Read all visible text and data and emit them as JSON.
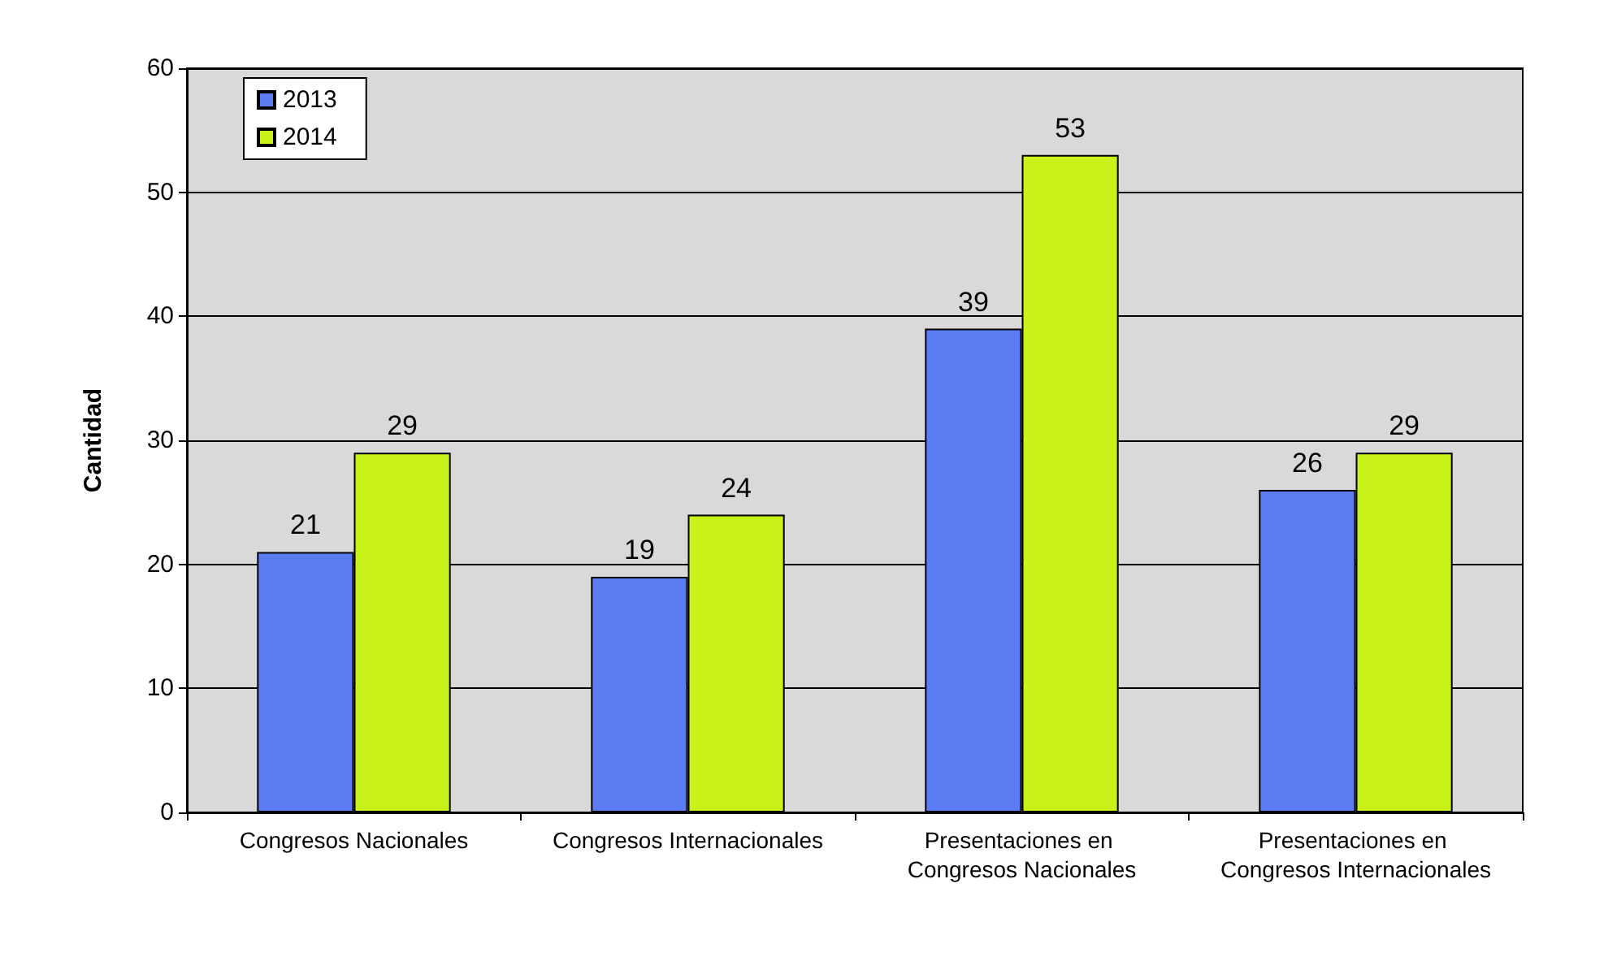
{
  "chart_data": {
    "type": "bar",
    "ylabel": "Cantidad",
    "categories": [
      "Congresos Nacionales",
      "Congresos Internacionales",
      "Presentaciones en Congresos Nacionales",
      "Presentaciones en Congresos Internacionales"
    ],
    "series": [
      {
        "name": "2013",
        "color": "#5b7cf2",
        "values": [
          21,
          19,
          39,
          26
        ]
      },
      {
        "name": "2014",
        "color": "#c8f21a",
        "values": [
          29,
          24,
          53,
          29
        ]
      }
    ],
    "ylim": [
      0,
      60
    ],
    "yticks": [
      0,
      10,
      20,
      30,
      40,
      50,
      60
    ],
    "grid": "y",
    "legend": "top left",
    "data_labels": true
  }
}
